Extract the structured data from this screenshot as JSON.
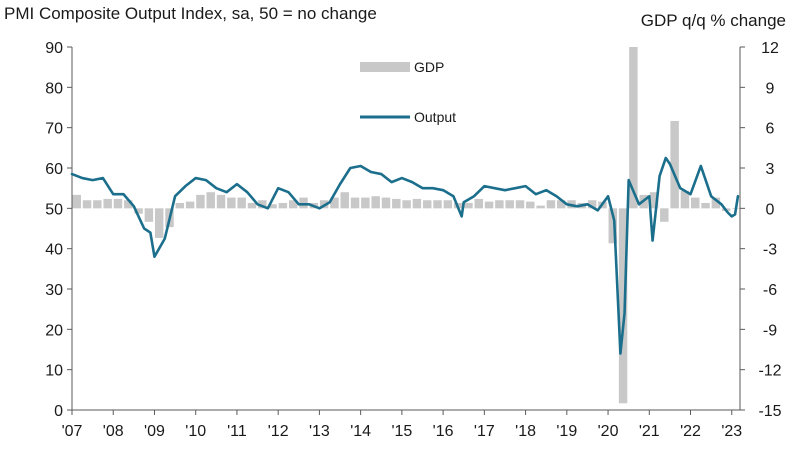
{
  "chart_data": {
    "type": "bar+line",
    "title_left": "PMI Composite  Output Index, sa, 50 = no change",
    "title_right": "GDP q/q % change",
    "left_axis": {
      "range": [
        0,
        90
      ],
      "ticks": [
        0,
        10,
        20,
        30,
        40,
        50,
        60,
        70,
        80,
        90
      ]
    },
    "right_axis": {
      "range": [
        -15,
        12
      ],
      "ticks": [
        -15,
        -12,
        -9,
        -6,
        -3,
        0,
        3,
        6,
        9,
        12
      ]
    },
    "x_axis": {
      "range": [
        2007,
        2023.2
      ],
      "tick_labels": [
        "'07",
        "'08",
        "'09",
        "'10",
        "'11",
        "'12",
        "'13",
        "'14",
        "'15",
        "'16",
        "'17",
        "'18",
        "'19",
        "'20",
        "'21",
        "'22",
        "'23"
      ],
      "tick_years": [
        2007,
        2008,
        2009,
        2010,
        2011,
        2012,
        2013,
        2014,
        2015,
        2016,
        2017,
        2018,
        2019,
        2020,
        2021,
        2022,
        2023
      ]
    },
    "legend": {
      "placement": "top-center",
      "entries": [
        "GDP",
        "Output"
      ]
    },
    "colors": {
      "gdp": "#c8c8c8",
      "output": "#1b6f8c",
      "axis": "#5a5a5a"
    },
    "series": [
      {
        "name": "GDP",
        "kind": "bar",
        "axis": "right",
        "x": [
          2007.0,
          2007.25,
          2007.5,
          2007.75,
          2008.0,
          2008.25,
          2008.5,
          2008.75,
          2009.0,
          2009.25,
          2009.5,
          2009.75,
          2010.0,
          2010.25,
          2010.5,
          2010.75,
          2011.0,
          2011.25,
          2011.5,
          2011.75,
          2012.0,
          2012.25,
          2012.5,
          2012.75,
          2013.0,
          2013.25,
          2013.5,
          2013.75,
          2014.0,
          2014.25,
          2014.5,
          2014.75,
          2015.0,
          2015.25,
          2015.5,
          2015.75,
          2016.0,
          2016.25,
          2016.5,
          2016.75,
          2017.0,
          2017.25,
          2017.5,
          2017.75,
          2018.0,
          2018.25,
          2018.5,
          2018.75,
          2019.0,
          2019.25,
          2019.5,
          2019.75,
          2020.0,
          2020.25,
          2020.5,
          2020.75,
          2021.0,
          2021.25,
          2021.5,
          2021.75,
          2022.0,
          2022.25,
          2022.5,
          2022.75,
          2023.0
        ],
        "values": [
          1.0,
          0.6,
          0.6,
          0.7,
          0.7,
          0.6,
          -0.4,
          -1.0,
          -2.2,
          -1.4,
          0.4,
          0.5,
          1.0,
          1.2,
          1.0,
          0.8,
          0.8,
          0.4,
          0.6,
          0.3,
          0.4,
          0.6,
          0.8,
          0.4,
          0.6,
          0.8,
          1.2,
          0.8,
          0.8,
          0.9,
          0.8,
          0.7,
          0.6,
          0.7,
          0.6,
          0.6,
          0.6,
          0.4,
          0.4,
          0.7,
          0.5,
          0.6,
          0.6,
          0.6,
          0.5,
          0.2,
          0.6,
          0.6,
          0.6,
          0.4,
          0.6,
          0.5,
          -2.6,
          -14.5,
          12.0,
          1.0,
          1.2,
          -1.0,
          6.5,
          1.3,
          0.8,
          0.4,
          0.8,
          -0.2,
          0.0
        ]
      },
      {
        "name": "Output",
        "kind": "line",
        "axis": "left",
        "x": [
          2007.0,
          2007.25,
          2007.5,
          2007.75,
          2008.0,
          2008.25,
          2008.5,
          2008.75,
          2008.9,
          2009.0,
          2009.25,
          2009.5,
          2009.75,
          2010.0,
          2010.25,
          2010.5,
          2010.75,
          2011.0,
          2011.25,
          2011.5,
          2011.75,
          2012.0,
          2012.25,
          2012.5,
          2012.75,
          2013.0,
          2013.25,
          2013.5,
          2013.75,
          2014.0,
          2014.25,
          2014.5,
          2014.75,
          2015.0,
          2015.25,
          2015.5,
          2015.75,
          2016.0,
          2016.25,
          2016.45,
          2016.5,
          2016.75,
          2017.0,
          2017.25,
          2017.5,
          2017.75,
          2018.0,
          2018.25,
          2018.5,
          2018.75,
          2019.0,
          2019.25,
          2019.5,
          2019.75,
          2020.0,
          2020.15,
          2020.3,
          2020.4,
          2020.5,
          2020.75,
          2021.0,
          2021.08,
          2021.25,
          2021.4,
          2021.5,
          2021.75,
          2022.0,
          2022.25,
          2022.5,
          2022.75,
          2022.9,
          2023.0,
          2023.08,
          2023.15
        ],
        "values": [
          58.5,
          57.5,
          57.0,
          57.5,
          53.5,
          53.5,
          50.5,
          45.0,
          44.0,
          38.0,
          42.5,
          53.0,
          55.5,
          57.5,
          57.0,
          55.0,
          54.0,
          56.0,
          54.0,
          51.0,
          50.0,
          55.0,
          54.0,
          51.0,
          51.0,
          50.0,
          51.5,
          56.0,
          60.0,
          60.5,
          59.0,
          58.5,
          56.5,
          57.5,
          56.5,
          55.0,
          55.0,
          54.5,
          53.0,
          48.0,
          51.5,
          53.0,
          55.5,
          55.0,
          54.5,
          55.0,
          55.5,
          53.5,
          54.5,
          53.0,
          51.0,
          50.5,
          51.0,
          49.5,
          53.0,
          47.0,
          14.0,
          24.0,
          57.0,
          51.0,
          53.0,
          42.0,
          58.0,
          62.5,
          61.0,
          55.0,
          53.5,
          60.5,
          53.0,
          51.0,
          49.0,
          48.0,
          48.5,
          53.0
        ]
      }
    ]
  }
}
